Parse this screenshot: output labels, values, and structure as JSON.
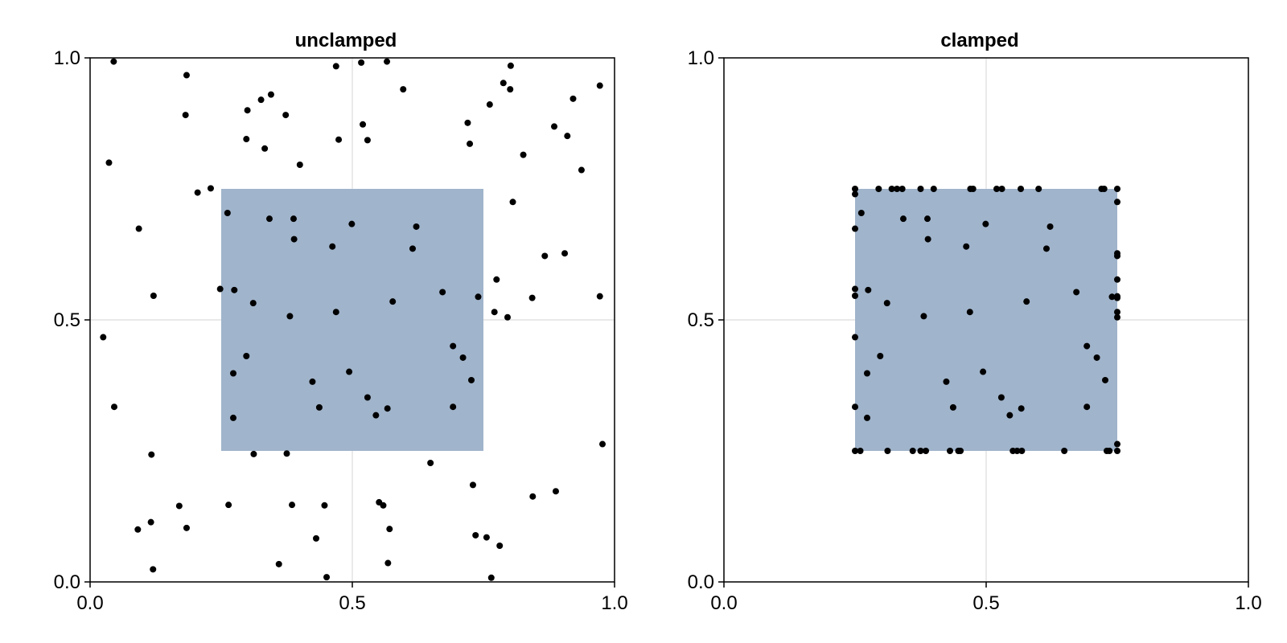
{
  "chart_data": [
    {
      "type": "scatter",
      "title": "unclamped",
      "xlim": [
        0,
        1
      ],
      "ylim": [
        0,
        1
      ],
      "xticks": [
        "0.0",
        "0.5",
        "1.0"
      ],
      "yticks": [
        "0.0",
        "0.5",
        "1.0"
      ],
      "grid": true,
      "rect": {
        "x0": 0.25,
        "y0": 0.25,
        "x1": 0.75,
        "y1": 0.75
      },
      "colors": {
        "rect": "#a0b4cb",
        "points": "#000000"
      },
      "points": [
        [
          0.045,
          0.993
        ],
        [
          0.566,
          0.993
        ],
        [
          0.517,
          0.991
        ],
        [
          0.469,
          0.984
        ],
        [
          0.802,
          0.985
        ],
        [
          0.184,
          0.967
        ],
        [
          0.788,
          0.952
        ],
        [
          0.801,
          0.94
        ],
        [
          0.597,
          0.94
        ],
        [
          0.972,
          0.947
        ],
        [
          0.345,
          0.93
        ],
        [
          0.326,
          0.92
        ],
        [
          0.921,
          0.922
        ],
        [
          0.3,
          0.9
        ],
        [
          0.762,
          0.911
        ],
        [
          0.182,
          0.891
        ],
        [
          0.373,
          0.891
        ],
        [
          0.52,
          0.873
        ],
        [
          0.72,
          0.876
        ],
        [
          0.885,
          0.869
        ],
        [
          0.91,
          0.851
        ],
        [
          0.298,
          0.845
        ],
        [
          0.474,
          0.844
        ],
        [
          0.529,
          0.843
        ],
        [
          0.724,
          0.836
        ],
        [
          0.333,
          0.827
        ],
        [
          0.826,
          0.815
        ],
        [
          0.036,
          0.8
        ],
        [
          0.4,
          0.796
        ],
        [
          0.937,
          0.786
        ],
        [
          0.205,
          0.743
        ],
        [
          0.23,
          0.751
        ],
        [
          0.806,
          0.725
        ],
        [
          0.262,
          0.704
        ],
        [
          0.342,
          0.693
        ],
        [
          0.388,
          0.693
        ],
        [
          0.499,
          0.683
        ],
        [
          0.622,
          0.678
        ],
        [
          0.093,
          0.674
        ],
        [
          0.389,
          0.654
        ],
        [
          0.462,
          0.64
        ],
        [
          0.615,
          0.636
        ],
        [
          0.867,
          0.622
        ],
        [
          0.905,
          0.627
        ],
        [
          0.775,
          0.577
        ],
        [
          0.248,
          0.559
        ],
        [
          0.275,
          0.557
        ],
        [
          0.672,
          0.553
        ],
        [
          0.121,
          0.546
        ],
        [
          0.74,
          0.544
        ],
        [
          0.843,
          0.542
        ],
        [
          0.972,
          0.545
        ],
        [
          0.311,
          0.532
        ],
        [
          0.577,
          0.535
        ],
        [
          0.771,
          0.515
        ],
        [
          0.469,
          0.515
        ],
        [
          0.381,
          0.507
        ],
        [
          0.796,
          0.505
        ],
        [
          0.025,
          0.467
        ],
        [
          0.692,
          0.45
        ],
        [
          0.711,
          0.428
        ],
        [
          0.298,
          0.431
        ],
        [
          0.494,
          0.401
        ],
        [
          0.273,
          0.398
        ],
        [
          0.727,
          0.385
        ],
        [
          0.424,
          0.382
        ],
        [
          0.529,
          0.352
        ],
        [
          0.046,
          0.334
        ],
        [
          0.437,
          0.333
        ],
        [
          0.567,
          0.331
        ],
        [
          0.692,
          0.334
        ],
        [
          0.545,
          0.318
        ],
        [
          0.273,
          0.313
        ],
        [
          0.977,
          0.263
        ],
        [
          0.117,
          0.243
        ],
        [
          0.312,
          0.244
        ],
        [
          0.375,
          0.245
        ],
        [
          0.649,
          0.227
        ],
        [
          0.73,
          0.185
        ],
        [
          0.888,
          0.173
        ],
        [
          0.844,
          0.163
        ],
        [
          0.551,
          0.152
        ],
        [
          0.17,
          0.145
        ],
        [
          0.264,
          0.147
        ],
        [
          0.385,
          0.147
        ],
        [
          0.447,
          0.146
        ],
        [
          0.559,
          0.146
        ],
        [
          0.091,
          0.1
        ],
        [
          0.116,
          0.114
        ],
        [
          0.184,
          0.103
        ],
        [
          0.571,
          0.101
        ],
        [
          0.735,
          0.089
        ],
        [
          0.756,
          0.085
        ],
        [
          0.781,
          0.069
        ],
        [
          0.431,
          0.083
        ],
        [
          0.12,
          0.024
        ],
        [
          0.36,
          0.034
        ],
        [
          0.568,
          0.036
        ],
        [
          0.451,
          0.009
        ],
        [
          0.765,
          0.008
        ]
      ]
    },
    {
      "type": "scatter",
      "title": "clamped",
      "xlim": [
        0,
        1
      ],
      "ylim": [
        0,
        1
      ],
      "xticks": [
        "0.0",
        "0.5",
        "1.0"
      ],
      "yticks": [
        "0.0",
        "0.5",
        "1.0"
      ],
      "grid": true,
      "rect": {
        "x0": 0.25,
        "y0": 0.25,
        "x1": 0.75,
        "y1": 0.75
      },
      "colors": {
        "rect": "#a0b4cb",
        "points": "#000000"
      },
      "points": [
        [
          0.25,
          0.75
        ],
        [
          0.25,
          0.74
        ],
        [
          0.295,
          0.75
        ],
        [
          0.32,
          0.75
        ],
        [
          0.33,
          0.75
        ],
        [
          0.34,
          0.75
        ],
        [
          0.375,
          0.75
        ],
        [
          0.4,
          0.75
        ],
        [
          0.47,
          0.75
        ],
        [
          0.475,
          0.75
        ],
        [
          0.52,
          0.75
        ],
        [
          0.53,
          0.75
        ],
        [
          0.566,
          0.75
        ],
        [
          0.6,
          0.75
        ],
        [
          0.72,
          0.75
        ],
        [
          0.725,
          0.75
        ],
        [
          0.75,
          0.75
        ],
        [
          0.75,
          0.725
        ],
        [
          0.262,
          0.704
        ],
        [
          0.342,
          0.693
        ],
        [
          0.388,
          0.693
        ],
        [
          0.499,
          0.683
        ],
        [
          0.622,
          0.678
        ],
        [
          0.25,
          0.674
        ],
        [
          0.389,
          0.654
        ],
        [
          0.462,
          0.64
        ],
        [
          0.615,
          0.636
        ],
        [
          0.75,
          0.622
        ],
        [
          0.75,
          0.627
        ],
        [
          0.75,
          0.577
        ],
        [
          0.25,
          0.559
        ],
        [
          0.275,
          0.557
        ],
        [
          0.672,
          0.553
        ],
        [
          0.25,
          0.546
        ],
        [
          0.74,
          0.544
        ],
        [
          0.75,
          0.542
        ],
        [
          0.75,
          0.545
        ],
        [
          0.311,
          0.532
        ],
        [
          0.577,
          0.535
        ],
        [
          0.75,
          0.515
        ],
        [
          0.469,
          0.515
        ],
        [
          0.381,
          0.507
        ],
        [
          0.75,
          0.505
        ],
        [
          0.25,
          0.467
        ],
        [
          0.692,
          0.45
        ],
        [
          0.711,
          0.428
        ],
        [
          0.298,
          0.431
        ],
        [
          0.494,
          0.401
        ],
        [
          0.273,
          0.398
        ],
        [
          0.727,
          0.385
        ],
        [
          0.424,
          0.382
        ],
        [
          0.529,
          0.352
        ],
        [
          0.25,
          0.334
        ],
        [
          0.437,
          0.333
        ],
        [
          0.567,
          0.331
        ],
        [
          0.692,
          0.334
        ],
        [
          0.545,
          0.318
        ],
        [
          0.273,
          0.313
        ],
        [
          0.75,
          0.263
        ],
        [
          0.25,
          0.25
        ],
        [
          0.26,
          0.25
        ],
        [
          0.312,
          0.25
        ],
        [
          0.36,
          0.25
        ],
        [
          0.375,
          0.25
        ],
        [
          0.385,
          0.25
        ],
        [
          0.431,
          0.25
        ],
        [
          0.447,
          0.25
        ],
        [
          0.451,
          0.25
        ],
        [
          0.551,
          0.25
        ],
        [
          0.559,
          0.25
        ],
        [
          0.568,
          0.25
        ],
        [
          0.649,
          0.25
        ],
        [
          0.73,
          0.25
        ],
        [
          0.735,
          0.25
        ],
        [
          0.75,
          0.25
        ]
      ]
    }
  ]
}
